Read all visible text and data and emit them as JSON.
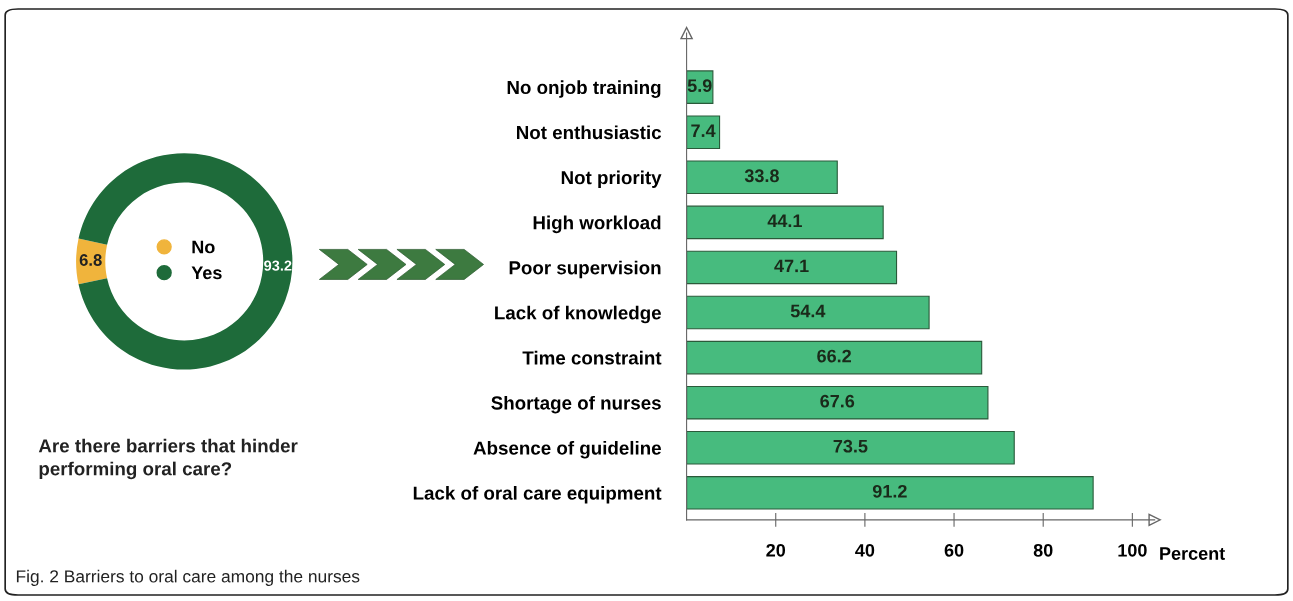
{
  "chart_data": [
    {
      "type": "donut",
      "title": "Are there barriers that hinder performing oral care?",
      "categories": [
        "No",
        "Yes"
      ],
      "values": [
        6.8,
        93.2
      ],
      "colors": [
        "#f0b43c",
        "#1e6b3a"
      ],
      "data_labels": true,
      "legend": "center"
    },
    {
      "type": "bar",
      "orientation": "horizontal",
      "categories": [
        "No onjob training",
        "Not enthusiastic",
        "Not priority",
        "High workload",
        "Poor supervision",
        "Lack of knowledge",
        "Time constraint",
        "Shortage of nurses",
        "Absence of guideline",
        "Lack of oral care equipment"
      ],
      "values": [
        5.9,
        7.4,
        33.8,
        44.1,
        47.1,
        54.4,
        66.2,
        67.6,
        73.5,
        91.2
      ],
      "color": "#47bb7e",
      "data_labels": true,
      "xlabel": "Percent",
      "xlim": [
        0,
        105
      ],
      "xticks": [
        20,
        40,
        60,
        80,
        100
      ],
      "grid": false,
      "annotations": [
        "Fig. 2 Barriers to oral care among the nurses"
      ]
    }
  ]
}
